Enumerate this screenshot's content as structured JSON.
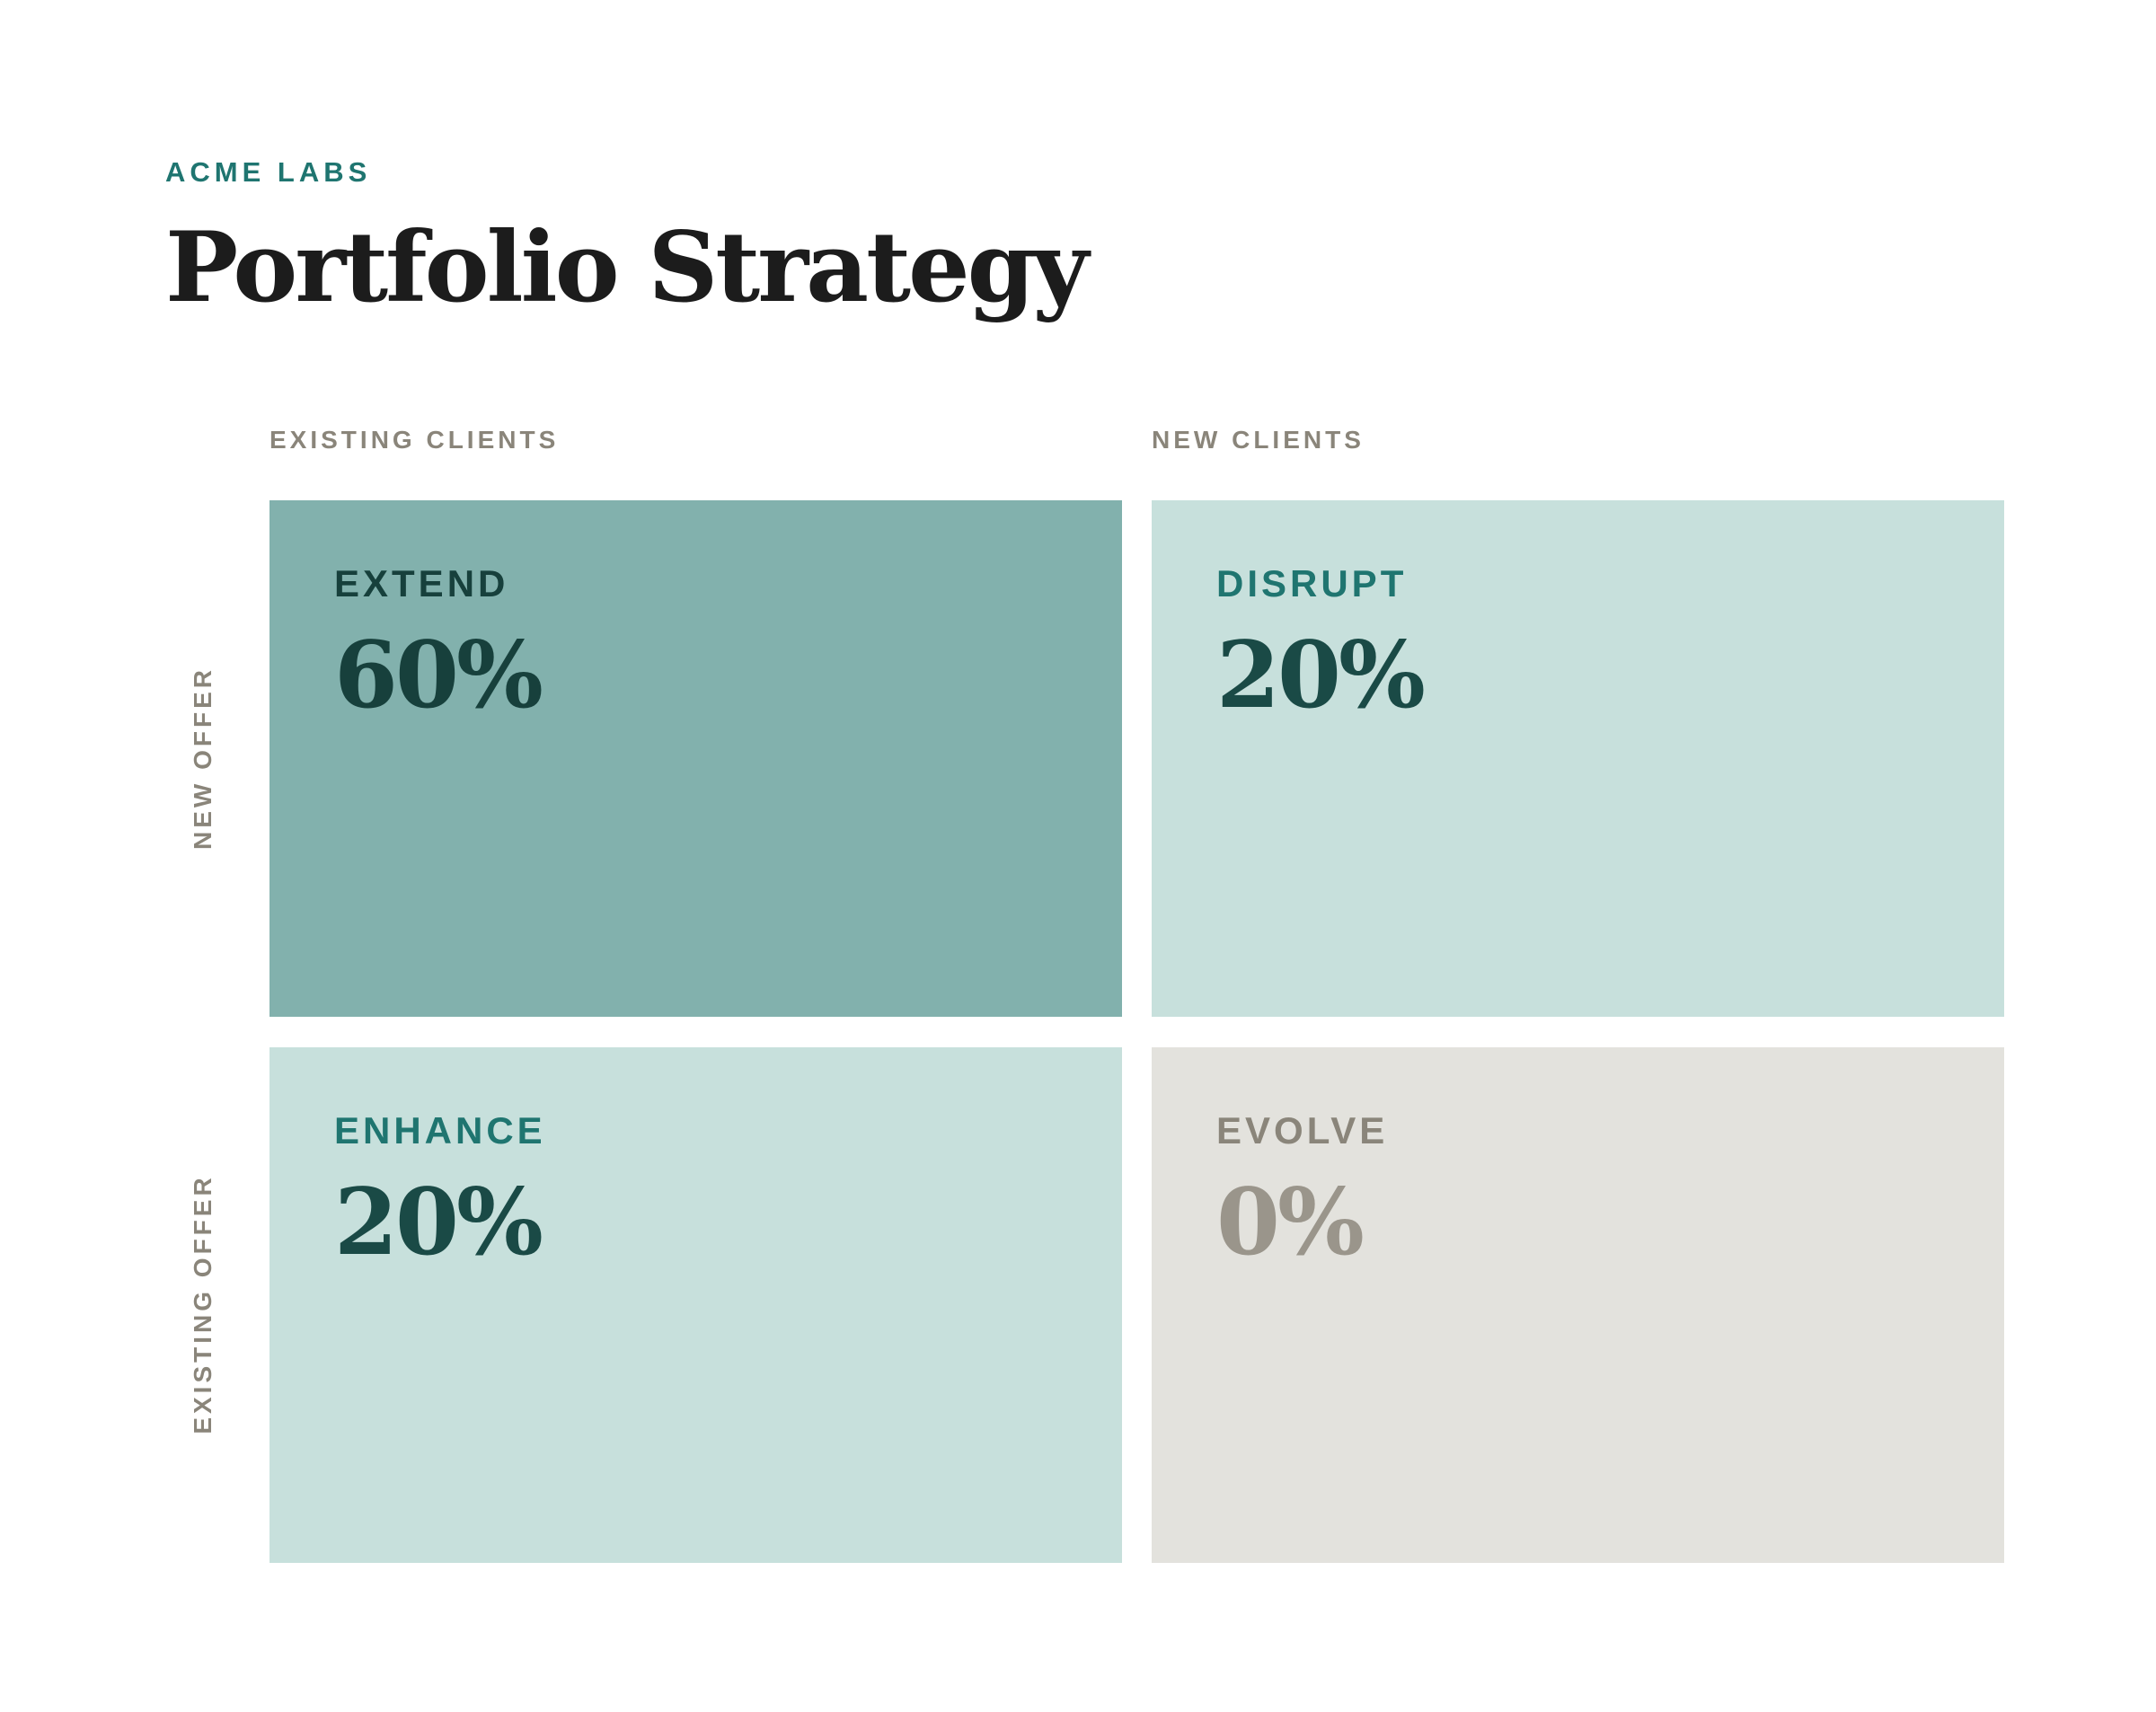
{
  "header": {
    "brand": "ACME LABS",
    "title": "Portfolio Strategy"
  },
  "columns": [
    "EXISTING CLIENTS",
    "NEW CLIENTS"
  ],
  "rows": [
    "NEW OFFER",
    "EXISTING OFFER"
  ],
  "quadrants": [
    {
      "name": "EXTEND",
      "value": "60%",
      "share": 60,
      "fill": "#82b1ad",
      "label_color": "#17403c",
      "value_color": "#17403c"
    },
    {
      "name": "DISRUPT",
      "value": "20%",
      "share": 20,
      "fill": "#c7e0dc",
      "label_color": "#1f7570",
      "value_color": "#1a4a46"
    },
    {
      "name": "ENHANCE",
      "value": "20%",
      "share": 20,
      "fill": "#c7e0dc",
      "label_color": "#1f7570",
      "value_color": "#1a4a46"
    },
    {
      "name": "EVOLVE",
      "value": "0%",
      "share": 0,
      "fill": "#e3e2dd",
      "label_color": "#8a857a",
      "value_color": "#9a958b"
    }
  ]
}
